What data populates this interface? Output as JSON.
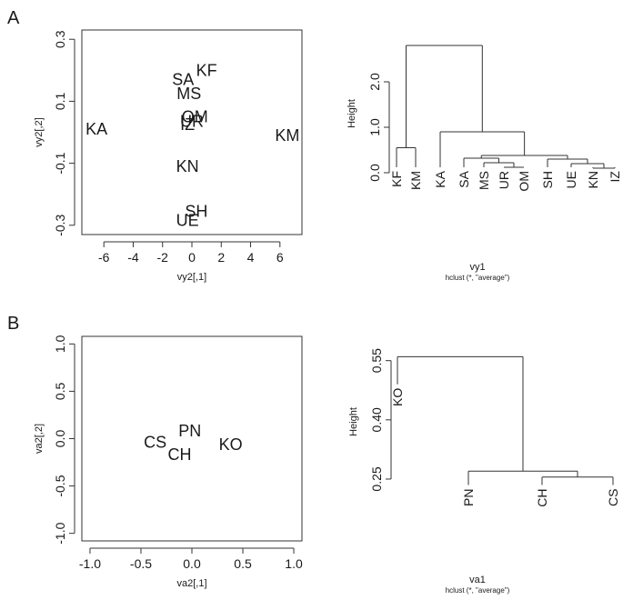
{
  "panels": {
    "a_label": "A",
    "b_label": "B"
  },
  "chart_data": [
    {
      "type": "scatter",
      "panel": "A",
      "title": "",
      "xlabel": "vy2[,1]",
      "ylabel": "vy2[,2]",
      "xlim": [
        -7.5,
        7.5
      ],
      "ylim": [
        -0.33,
        0.33
      ],
      "xticks": [
        -6,
        -4,
        -2,
        0,
        2,
        4,
        6
      ],
      "yticks": [
        -0.3,
        -0.1,
        0.1,
        0.3
      ],
      "tick_labels_x": [
        "-6",
        "-4",
        "-2",
        "0",
        "2",
        "4",
        "6"
      ],
      "tick_labels_y": [
        "-0.3",
        "-0.1",
        "0.1",
        "0.3"
      ],
      "points": [
        {
          "label": "KF",
          "x": 1.0,
          "y": 0.2
        },
        {
          "label": "SA",
          "x": -0.6,
          "y": 0.17
        },
        {
          "label": "MS",
          "x": -0.2,
          "y": 0.125
        },
        {
          "label": "OM",
          "x": 0.2,
          "y": 0.05
        },
        {
          "label": "UR",
          "x": 0.0,
          "y": 0.035
        },
        {
          "label": "IZ",
          "x": -0.3,
          "y": 0.025
        },
        {
          "label": "KA",
          "x": -6.5,
          "y": 0.01
        },
        {
          "label": "KM",
          "x": 6.5,
          "y": -0.01
        },
        {
          "label": "KN",
          "x": -0.3,
          "y": -0.11
        },
        {
          "label": "SH",
          "x": 0.3,
          "y": -0.255
        },
        {
          "label": "UE",
          "x": -0.3,
          "y": -0.285
        }
      ]
    },
    {
      "type": "dendrogram",
      "panel": "A",
      "ylabel": "Height",
      "xlabel": "vy1",
      "sublabel": "hclust (*, \"average\")",
      "ylim": [
        -0.3,
        2.9
      ],
      "yticks": [
        0.0,
        1.0,
        2.0
      ],
      "tick_labels_y": [
        "0.0",
        "1.0",
        "2.0"
      ],
      "leaves": [
        "KF",
        "KM",
        "KA",
        "SA",
        "MS",
        "UR",
        "OM",
        "SH",
        "UE",
        "KN",
        "IZ"
      ],
      "merges": [
        {
          "left": "KN",
          "right": "IZ",
          "height": 0.1
        },
        {
          "left": "UR",
          "right": "OM",
          "height": 0.12
        },
        {
          "left": "UE",
          "right": "KN+IZ",
          "height": 0.2
        },
        {
          "left": "MS",
          "right": "UR+OM",
          "height": 0.22
        },
        {
          "left": "SH",
          "right": "UE+KN+IZ",
          "height": 0.3
        },
        {
          "left": "SA",
          "right": "MS+UR+OM",
          "height": 0.32
        },
        {
          "left": "SA+MS+UR+OM",
          "right": "SH+UE+KN+IZ",
          "height": 0.38
        },
        {
          "left": "KF",
          "right": "KM",
          "height": 0.55
        },
        {
          "left": "KA",
          "right": "SA..IZ",
          "height": 0.9
        },
        {
          "left": "KF+KM",
          "right": "KA..IZ",
          "height": 2.8
        }
      ]
    },
    {
      "type": "scatter",
      "panel": "B",
      "title": "",
      "xlabel": "va2[,1]",
      "ylabel": "va2[,2]",
      "xlim": [
        -1.08,
        1.08
      ],
      "ylim": [
        -1.08,
        1.08
      ],
      "xticks": [
        -1.0,
        -0.5,
        0.0,
        0.5,
        1.0
      ],
      "yticks": [
        -1.0,
        -0.5,
        0.0,
        0.5,
        1.0
      ],
      "tick_labels_x": [
        "-1.0",
        "-0.5",
        "0.0",
        "0.5",
        "1.0"
      ],
      "tick_labels_y": [
        "-1.0",
        "-0.5",
        "0.0",
        "0.5",
        "1.0"
      ],
      "points": [
        {
          "label": "CS",
          "x": -0.36,
          "y": -0.04
        },
        {
          "label": "PN",
          "x": -0.02,
          "y": 0.08
        },
        {
          "label": "CH",
          "x": -0.12,
          "y": -0.17
        },
        {
          "label": "KO",
          "x": 0.38,
          "y": -0.06
        }
      ]
    },
    {
      "type": "dendrogram",
      "panel": "B",
      "ylabel": "Height",
      "xlabel": "va1",
      "sublabel": "hclust (*, \"average\")",
      "ylim": [
        0.22,
        0.57
      ],
      "yticks": [
        0.25,
        0.4,
        0.55
      ],
      "tick_labels_y": [
        "0.25",
        "0.40",
        "0.55"
      ],
      "leaves": [
        "KO",
        "PN",
        "CH",
        "CS"
      ],
      "merges": [
        {
          "left": "CH",
          "right": "CS",
          "height": 0.255
        },
        {
          "left": "PN",
          "right": "CH+CS",
          "height": 0.27
        },
        {
          "left": "KO",
          "right": "PN+CH+CS",
          "height": 0.56
        }
      ]
    }
  ]
}
